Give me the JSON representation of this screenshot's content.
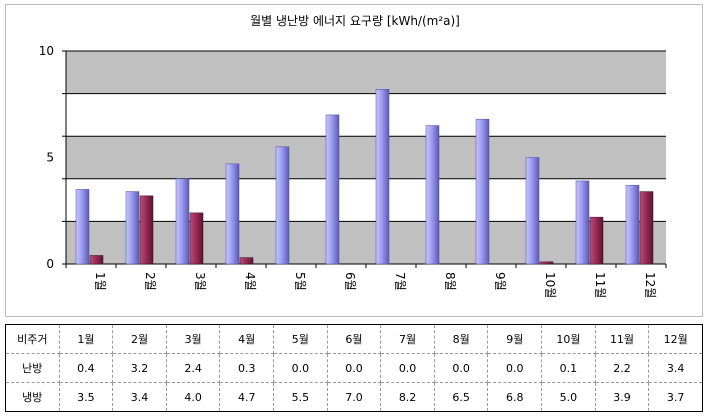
{
  "chart_data": {
    "type": "bar",
    "title": "월별 냉난방 에너지 요구량 [kWh/(m²a)]",
    "categories": [
      "1월",
      "2월",
      "3월",
      "4월",
      "5월",
      "6월",
      "7월",
      "8월",
      "9월",
      "10월",
      "11월",
      "12월"
    ],
    "series": [
      {
        "name": "냉방",
        "values": [
          3.5,
          3.4,
          4.0,
          4.7,
          5.5,
          7.0,
          8.2,
          6.5,
          6.8,
          5.0,
          3.9,
          3.7
        ],
        "color": "#8c8ce0"
      },
      {
        "name": "난방",
        "values": [
          0.4,
          3.2,
          2.4,
          0.3,
          0.0,
          0.0,
          0.0,
          0.0,
          0.0,
          0.1,
          2.2,
          3.4
        ],
        "color": "#a0305a"
      }
    ],
    "yticks": [
      "0",
      "5",
      "10"
    ],
    "ylim": [
      0,
      10
    ],
    "grid": true,
    "plot_background": [
      "#c0c0c0",
      "#ffffff"
    ]
  },
  "table": {
    "header_label": "비주거",
    "months": [
      "1월",
      "2월",
      "3월",
      "4월",
      "5월",
      "6월",
      "7월",
      "8월",
      "9월",
      "10월",
      "11월",
      "12월"
    ],
    "rows": [
      {
        "label": "난방",
        "values": [
          "0.4",
          "3.2",
          "2.4",
          "0.3",
          "0.0",
          "0.0",
          "0.0",
          "0.0",
          "0.0",
          "0.1",
          "2.2",
          "3.4"
        ]
      },
      {
        "label": "냉방",
        "values": [
          "3.5",
          "3.4",
          "4.0",
          "4.7",
          "5.5",
          "7.0",
          "8.2",
          "6.5",
          "6.8",
          "5.0",
          "3.9",
          "3.7"
        ]
      }
    ]
  }
}
